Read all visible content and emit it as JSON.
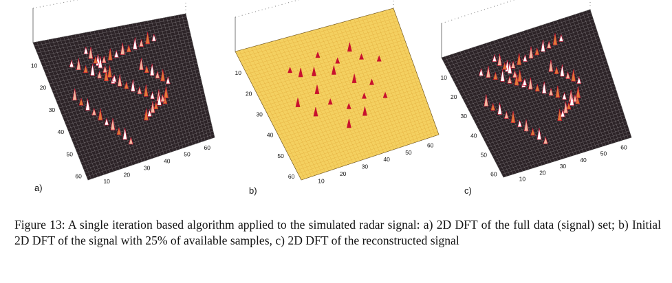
{
  "panels": [
    {
      "label": "a)",
      "surface": "dark",
      "shape": "plane",
      "x_ticks": [
        "10",
        "20",
        "30",
        "40",
        "50",
        "60"
      ],
      "y_ticks": [
        "10",
        "20",
        "30",
        "40",
        "50",
        "60"
      ]
    },
    {
      "label": "b)",
      "surface": "yellow",
      "shape": "sparse",
      "x_ticks": [
        "10",
        "20",
        "30",
        "40",
        "50",
        "60"
      ],
      "y_ticks": [
        "10",
        "20",
        "30",
        "40",
        "50",
        "60"
      ]
    },
    {
      "label": "c)",
      "surface": "dark",
      "shape": "plane",
      "x_ticks": [
        "10",
        "20",
        "30",
        "40",
        "50",
        "60"
      ],
      "y_ticks": [
        "10",
        "20",
        "30",
        "40",
        "50",
        "60"
      ]
    }
  ],
  "caption": "Figure 13: A single iteration based algorithm applied to the simulated radar signal: a) 2D DFT of the full data (signal) set; b) Initial 2D DFT of the signal with 25% of available samples, c) 2D DFT of the reconstructed signal",
  "colors": {
    "dark_surface": "#2c2327",
    "yellow_surface": "#f4d060",
    "peak_red": "#c8102e",
    "peak_white": "#ffffff"
  }
}
